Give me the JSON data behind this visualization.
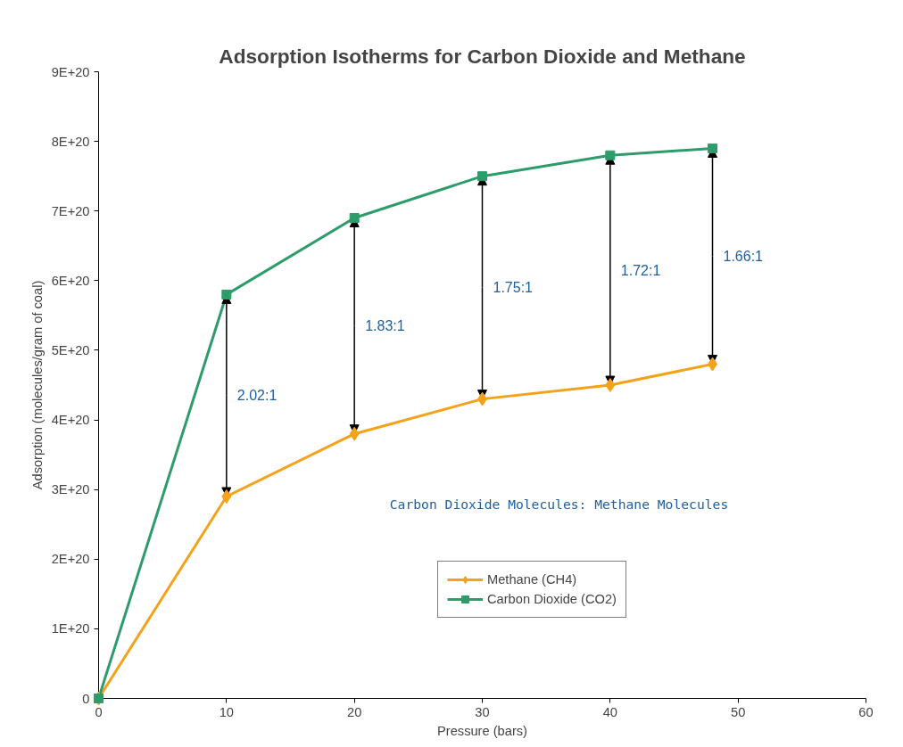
{
  "chart_data": {
    "type": "line",
    "title": "Adsorption Isotherms for Carbon Dioxide and Methane",
    "xlabel": "Pressure (bars)",
    "ylabel": "Adsorption (molecules/gram of coal)",
    "x": [
      0,
      10,
      20,
      30,
      40,
      48
    ],
    "series": [
      {
        "name": "Methane (CH4)",
        "color": "#f5a21b",
        "marker": "diamond",
        "values": [
          0,
          2.9e+20,
          3.8e+20,
          4.3e+20,
          4.5e+20,
          4.8e+20
        ]
      },
      {
        "name": "Carbon Dioxide (CO2)",
        "color": "#2e9c6a",
        "marker": "square",
        "values": [
          0,
          5.8e+20,
          6.9e+20,
          7.5e+20,
          7.8e+20,
          7.9e+20
        ]
      }
    ],
    "xlim": [
      0,
      60
    ],
    "xticks": [
      0,
      10,
      20,
      30,
      40,
      50,
      60
    ],
    "ylim": [
      0,
      9e+20
    ],
    "yticks": [
      {
        "value": 0,
        "label": "0"
      },
      {
        "value": 1e+20,
        "label": "1E+20"
      },
      {
        "value": 2e+20,
        "label": "2E+20"
      },
      {
        "value": 3e+20,
        "label": "3E+20"
      },
      {
        "value": 4e+20,
        "label": "4E+20"
      },
      {
        "value": 5e+20,
        "label": "5E+20"
      },
      {
        "value": 6e+20,
        "label": "6E+20"
      },
      {
        "value": 7e+20,
        "label": "7E+20"
      },
      {
        "value": 8e+20,
        "label": "8E+20"
      },
      {
        "value": 9e+20,
        "label": "9E+20"
      }
    ],
    "annotations": [
      {
        "text": "2.02:1",
        "x": 10,
        "y": 5.8e+20
      },
      {
        "text": "1.83:1",
        "x": 20,
        "y": 6.9e+20
      },
      {
        "text": "1.75:1",
        "x": 30,
        "y": 7.5e+20
      },
      {
        "text": "1.72:1",
        "x": 40,
        "y": 7.8e+20
      },
      {
        "text": "1.66:1",
        "x": 48,
        "y": 7.9e+20
      },
      "Carbon Dioxide Molecules: Methane Molecules"
    ],
    "grid": false,
    "legend": "bottom",
    "line_style": "solid"
  }
}
